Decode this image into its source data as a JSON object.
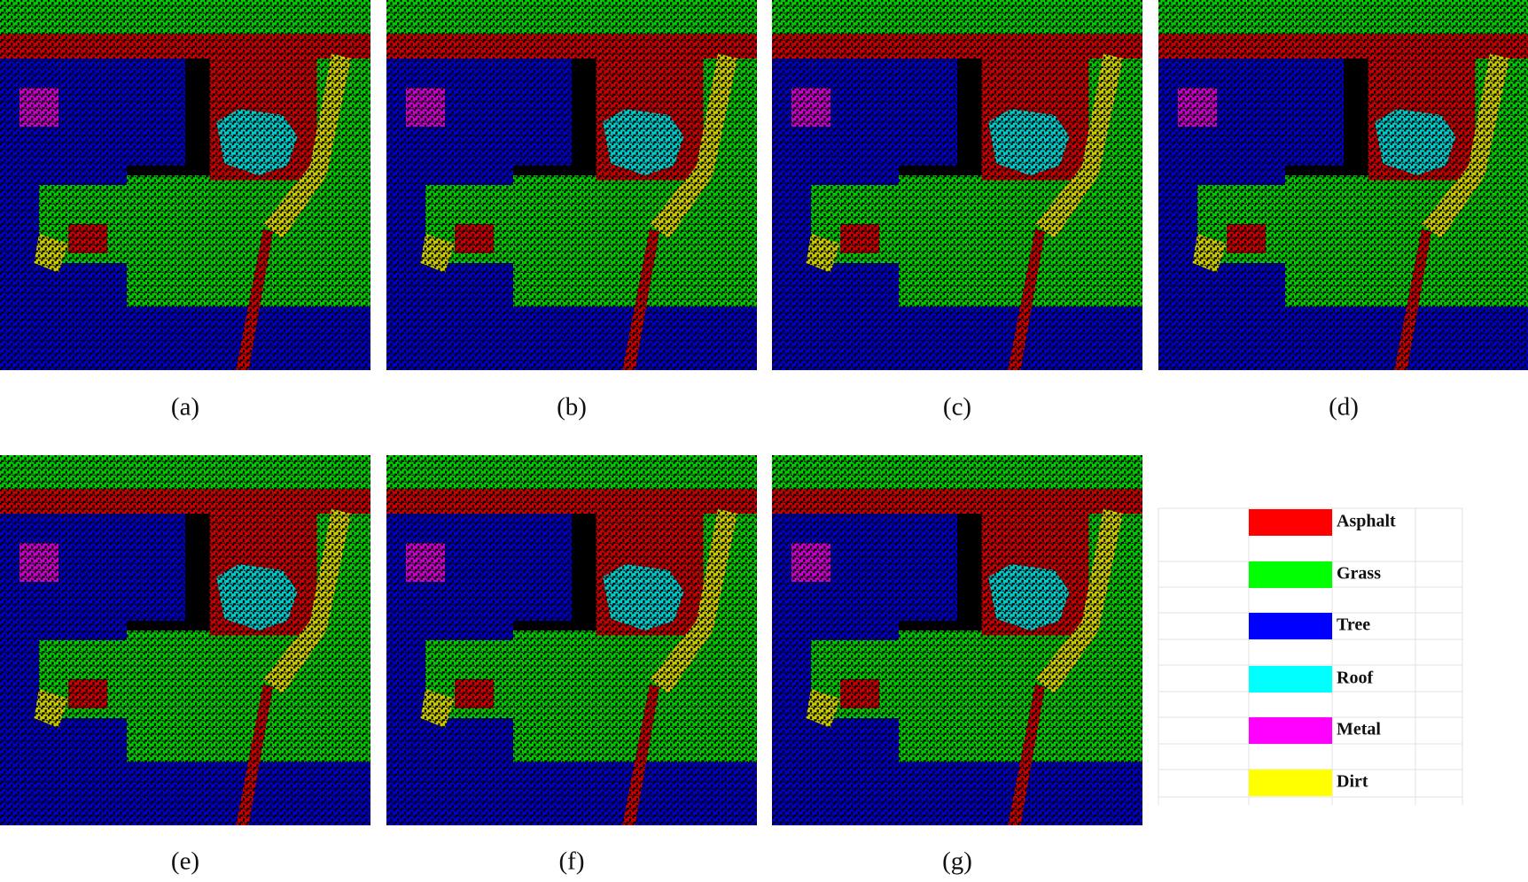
{
  "panels": [
    {
      "label": "(a)"
    },
    {
      "label": "(b)"
    },
    {
      "label": "(c)"
    },
    {
      "label": "(d)"
    },
    {
      "label": "(e)"
    },
    {
      "label": "(f)"
    },
    {
      "label": "(g)"
    }
  ],
  "legend": {
    "items": [
      {
        "name": "Asphalt",
        "color": "#ff0000"
      },
      {
        "name": "Grass",
        "color": "#00ff00"
      },
      {
        "name": "Tree",
        "color": "#0000ff"
      },
      {
        "name": "Roof",
        "color": "#00ffff"
      },
      {
        "name": "Metal",
        "color": "#ff00ff"
      },
      {
        "name": "Dirt",
        "color": "#ffff00"
      }
    ]
  }
}
